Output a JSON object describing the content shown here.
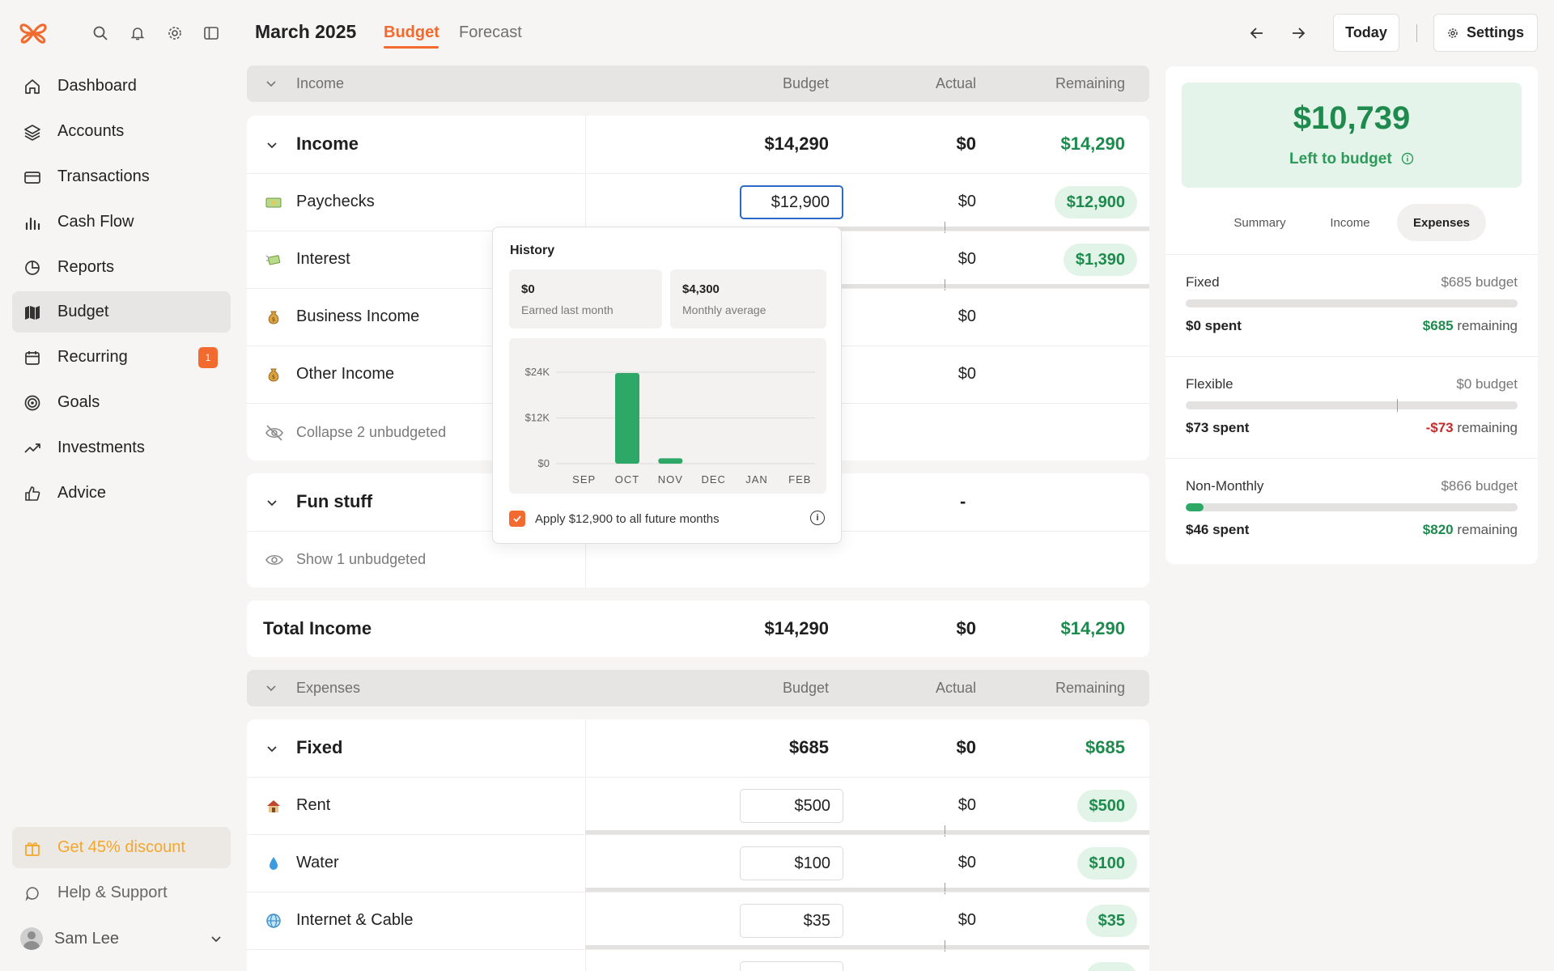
{
  "header": {
    "month": "March 2025",
    "tabs": [
      "Budget",
      "Forecast"
    ],
    "today_label": "Today",
    "settings_label": "Settings"
  },
  "sidebar": {
    "items": [
      {
        "label": "Dashboard",
        "icon": "home-icon"
      },
      {
        "label": "Accounts",
        "icon": "layers-icon"
      },
      {
        "label": "Transactions",
        "icon": "card-icon"
      },
      {
        "label": "Cash Flow",
        "icon": "bar-chart-icon"
      },
      {
        "label": "Reports",
        "icon": "pie-chart-icon"
      },
      {
        "label": "Budget",
        "icon": "map-icon",
        "active": true
      },
      {
        "label": "Recurring",
        "icon": "calendar-icon",
        "badge": "1"
      },
      {
        "label": "Goals",
        "icon": "target-icon"
      },
      {
        "label": "Investments",
        "icon": "trend-icon"
      },
      {
        "label": "Advice",
        "icon": "thumbs-up-icon"
      }
    ],
    "discount_label": "Get 45% discount",
    "help_label": "Help & Support",
    "user_name": "Sam Lee"
  },
  "income_header": {
    "label": "Income",
    "budget": "Budget",
    "actual": "Actual",
    "remaining": "Remaining"
  },
  "income_group": {
    "label": "Income",
    "budget": "$14,290",
    "actual": "$0",
    "remaining": "$14,290"
  },
  "income_items": [
    {
      "label": "Paychecks",
      "budget": "$12,900",
      "actual": "$0",
      "remaining": "$12,900"
    },
    {
      "label": "Interest",
      "budget": "",
      "actual": "$0",
      "remaining": "$1,390"
    },
    {
      "label": "Business Income",
      "budget": "",
      "actual": "$0",
      "remaining": ""
    },
    {
      "label": "Other Income",
      "budget": "",
      "actual": "$0",
      "remaining": ""
    }
  ],
  "collapse_label": "Collapse 2 unbudgeted",
  "fun_group": {
    "label": "Fun stuff",
    "actual": "-"
  },
  "show_unbudgeted_label": "Show 1 unbudgeted",
  "total_income": {
    "label": "Total Income",
    "budget": "$14,290",
    "actual": "$0",
    "remaining": "$14,290"
  },
  "expenses_header": {
    "label": "Expenses",
    "budget": "Budget",
    "actual": "Actual",
    "remaining": "Remaining"
  },
  "fixed_group": {
    "label": "Fixed",
    "budget": "$685",
    "actual": "$0",
    "remaining": "$685"
  },
  "fixed_items": [
    {
      "label": "Rent",
      "budget": "$500",
      "actual": "$0",
      "remaining": "$500"
    },
    {
      "label": "Water",
      "budget": "$100",
      "actual": "$0",
      "remaining": "$100"
    },
    {
      "label": "Internet & Cable",
      "budget": "$35",
      "actual": "$0",
      "remaining": "$35"
    }
  ],
  "summary": {
    "amount": "$10,739",
    "label": "Left to budget",
    "tabs": [
      "Summary",
      "Income",
      "Expenses"
    ],
    "sections": [
      {
        "name": "Fixed",
        "budget": "$685 budget",
        "spent": "$0 spent",
        "remaining_amt": "$685",
        "remaining_word": "remaining",
        "progress": 0
      },
      {
        "name": "Flexible",
        "budget": "$0 budget",
        "spent": "$73 spent",
        "remaining_amt": "-$73",
        "remaining_word": "remaining",
        "progress": 0
      },
      {
        "name": "Non-Monthly",
        "budget": "$866 budget",
        "spent": "$46 spent",
        "remaining_amt": "$820",
        "remaining_word": "remaining",
        "progress": 0.053
      }
    ]
  },
  "history": {
    "title": "History",
    "earned_value": "$0",
    "earned_label": "Earned last month",
    "avg_value": "$4,300",
    "avg_label": "Monthly average",
    "apply_label": "Apply $12,900 to all future months"
  },
  "chart_data": {
    "type": "bar",
    "categories": [
      "SEP",
      "OCT",
      "NOV",
      "DEC",
      "JAN",
      "FEB"
    ],
    "values": [
      0,
      23800,
      1400,
      0,
      0,
      0
    ],
    "ylim": [
      0,
      24000
    ],
    "yticks": [
      "$0",
      "$12K",
      "$24K"
    ],
    "color": "#2ea866",
    "grid": true
  }
}
